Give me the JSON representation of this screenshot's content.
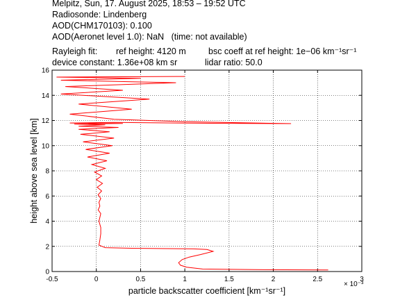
{
  "header": {
    "line1": "Melpitz, Sun, 17. August 2025, 18:53 – 19:52 UTC",
    "line2": "Radiosonde: Lindenberg",
    "line3": "AOD(CHM170103): 0.100",
    "line4": "AOD(Aeronet level 1.0): NaN   (time: not available)",
    "rayleigh_label": "Rayleigh fit:",
    "ref_height": "ref height: 4120 m",
    "bsc_coeff": "bsc coeff at ref height: 1e−06 km⁻¹sr⁻¹",
    "device_constant": "device constant: 1.36e+08 km sr",
    "lidar_ratio": "lidar ratio: 50.0"
  },
  "chart_data": {
    "type": "line",
    "title": "",
    "xlabel": "particle backscatter coefficient [km⁻¹sr⁻¹]",
    "ylabel": "height above sea level [km]",
    "x_multiplier": "× 10⁻³",
    "xlim": [
      -0.5,
      3
    ],
    "ylim": [
      0,
      16
    ],
    "xticks": [
      -0.5,
      0,
      0.5,
      1,
      1.5,
      2,
      2.5,
      3
    ],
    "yticks": [
      0,
      2,
      4,
      6,
      8,
      10,
      12,
      14,
      16
    ],
    "xtick_labels": [
      "-0.5",
      "0",
      "0.5",
      "1",
      "1.5",
      "2",
      "2.5",
      "3"
    ],
    "ytick_labels": [
      "0",
      "2",
      "4",
      "6",
      "8",
      "10",
      "12",
      "14",
      "16"
    ],
    "grid": true,
    "line_color": "#ff0000",
    "series": [
      {
        "x": [
          2.62,
          1.8,
          1.2,
          1.02,
          0.95,
          0.93,
          0.97,
          1.05,
          1.18,
          1.32,
          1.25,
          1.1,
          0.8,
          0.4,
          0.1,
          0.03,
          0.04,
          0.05,
          0.05,
          0.03,
          0.04,
          0.05,
          0.02,
          0.04,
          0.03,
          0.05,
          0.02,
          0.06,
          0.01,
          0.07,
          0.0,
          0.06,
          -0.02,
          0.1,
          -0.05,
          0.12,
          -0.1,
          0.15,
          -0.12,
          0.18,
          -0.15,
          0.2,
          -0.18,
          0.15,
          -0.2,
          0.25,
          -0.2,
          0.1,
          -0.25,
          0.3,
          -0.3,
          0.2,
          0.6,
          1.3,
          2.2,
          1.0,
          0.2,
          -0.3,
          0.4,
          -0.2,
          0.6,
          -0.4,
          0.3,
          -0.35,
          0.9,
          -0.4,
          0.5,
          -0.45,
          1.0
        ],
        "y": [
          0.12,
          0.15,
          0.2,
          0.35,
          0.5,
          0.7,
          0.95,
          1.15,
          1.35,
          1.6,
          1.75,
          1.8,
          1.82,
          1.85,
          1.9,
          2.1,
          2.5,
          3.0,
          3.5,
          4.0,
          4.3,
          4.6,
          4.9,
          5.2,
          5.5,
          5.8,
          6.1,
          6.4,
          6.7,
          7.0,
          7.3,
          7.6,
          7.9,
          8.2,
          8.5,
          8.8,
          9.1,
          9.4,
          9.7,
          10.0,
          10.3,
          10.6,
          10.9,
          11.1,
          11.3,
          11.45,
          11.55,
          11.65,
          11.72,
          11.76,
          11.8,
          11.85,
          11.82,
          11.78,
          11.75,
          11.9,
          12.1,
          12.5,
          12.9,
          13.3,
          13.7,
          14.1,
          14.4,
          14.7,
          15.0,
          15.2,
          15.35,
          15.45,
          15.5
        ]
      }
    ]
  }
}
